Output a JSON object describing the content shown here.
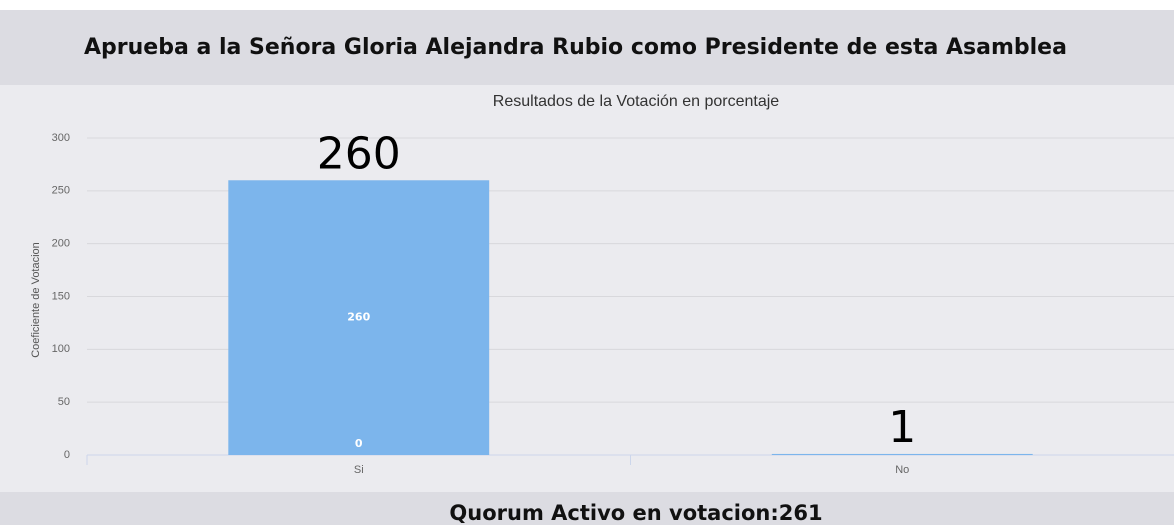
{
  "header": {
    "title": "Aprueba a la Señora Gloria Alejandra Rubio como Presidente de esta Asamblea"
  },
  "footer": {
    "text": "Quorum Activo en votacion:261"
  },
  "chart_data": {
    "type": "bar",
    "title": "Resultados de la Votación en porcentaje",
    "y_label": "Coeficiente de Votacion",
    "categories": [
      "Si",
      "No"
    ],
    "series": [
      {
        "color": "#7cb5ec",
        "values": [
          260,
          1
        ]
      },
      {
        "color": "#7cb5ec",
        "values": [
          0,
          null
        ]
      }
    ],
    "ylim": [
      0,
      300
    ],
    "yticks": [
      0,
      50,
      100,
      150,
      200,
      250,
      300
    ],
    "grid": true
  }
}
